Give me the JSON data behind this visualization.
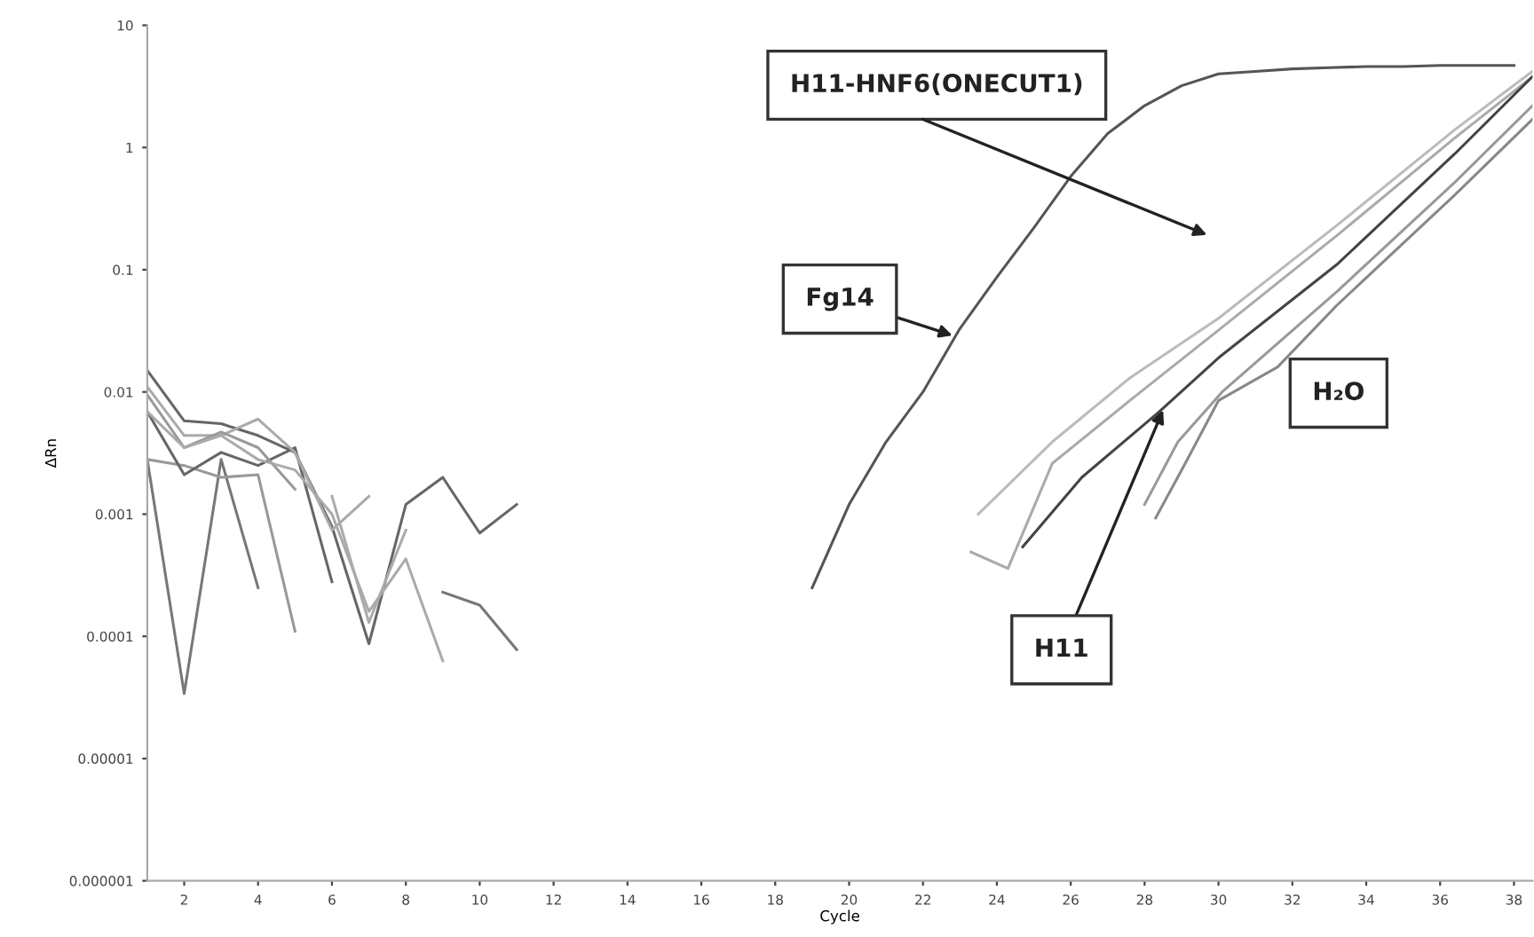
{
  "chart_data": {
    "type": "line",
    "xlabel": "Cycle",
    "ylabel": "ΔRn",
    "log": "y",
    "grid": false,
    "marker": "none",
    "line_style": "solid",
    "xlim": [
      1,
      38.5
    ],
    "xticks": [
      2,
      4,
      6,
      8,
      10,
      12,
      14,
      16,
      18,
      20,
      22,
      24,
      26,
      28,
      30,
      32,
      34,
      36,
      38
    ],
    "ylim": [
      1e-06,
      10
    ],
    "yticks": [
      {
        "value": 1e-06,
        "label": "0.000001"
      },
      {
        "value": 1e-05,
        "label": "0.00001"
      },
      {
        "value": 0.0001,
        "label": "0.0001"
      },
      {
        "value": 0.001,
        "label": "0.001"
      },
      {
        "value": 0.01,
        "label": "0.01"
      },
      {
        "value": 0.1,
        "label": "0.1"
      },
      {
        "value": 1,
        "label": "1"
      },
      {
        "value": 10,
        "label": "10"
      }
    ],
    "series": [
      {
        "color": "#777777",
        "x": [
          1,
          2,
          3,
          4
        ],
        "values": [
          0.0028,
          3.4e-05,
          0.0028,
          0.00025
        ]
      },
      {
        "color": "#999999",
        "x": [
          1,
          2,
          3,
          4,
          5
        ],
        "values": [
          0.0028,
          0.0025,
          0.002,
          0.0021,
          0.00011
        ]
      },
      {
        "color": "#666666",
        "x": [
          1,
          2,
          3,
          4,
          5,
          6
        ],
        "values": [
          0.0069,
          0.0021,
          0.0032,
          0.0025,
          0.0035,
          0.00028
        ]
      },
      {
        "color": "#666666",
        "x": [
          1,
          2,
          3,
          4,
          5,
          6,
          7,
          8,
          9,
          10,
          11
        ],
        "values": [
          0.015,
          0.0058,
          0.0055,
          0.0044,
          0.0032,
          0.00079,
          8.7e-05,
          0.0012,
          0.002,
          0.0007,
          0.0012
        ]
      },
      {
        "color": "#aaaaaa",
        "x": [
          1,
          2,
          3,
          4,
          5,
          6,
          7
        ],
        "values": [
          0.011,
          0.0044,
          0.0044,
          0.006,
          0.0032,
          0.00074,
          0.0014
        ]
      },
      {
        "color": "#999999",
        "x": [
          1,
          2,
          3,
          4,
          5
        ],
        "values": [
          0.0095,
          0.0035,
          0.0047,
          0.0035,
          0.0016
        ]
      },
      {
        "color": "#aaaaaa",
        "x": [
          1,
          2,
          3,
          4,
          5,
          6,
          7,
          8,
          9
        ],
        "values": [
          0.0069,
          0.0035,
          0.0044,
          0.0028,
          0.0023,
          0.001,
          0.00016,
          0.00043,
          6.3e-05
        ]
      },
      {
        "color": "#777777",
        "x": [
          9,
          10,
          11
        ],
        "values": [
          0.00023,
          0.00018,
          7.8e-05
        ]
      },
      {
        "color": "#aaaaaa",
        "x": [
          6,
          7,
          8
        ],
        "values": [
          0.0014,
          0.00013,
          0.00074
        ]
      },
      {
        "color": "#555555",
        "x": [
          19,
          20,
          21,
          22,
          23,
          24,
          25,
          26,
          27,
          28,
          29,
          30,
          31,
          32,
          33,
          34,
          35,
          36,
          37,
          38
        ],
        "values": [
          0.00025,
          0.0012,
          0.0039,
          0.01,
          0.033,
          0.087,
          0.22,
          0.58,
          1.3,
          2.2,
          3.2,
          4.0,
          4.2,
          4.4,
          4.5,
          4.6,
          4.6,
          4.7,
          4.7,
          4.7
        ]
      },
      {
        "color": "#aaaaaa",
        "x": [
          23.3,
          24.3,
          25.5,
          27.6,
          30.0,
          33.2,
          36.4,
          38.5
        ],
        "values": [
          0.00049,
          0.00036,
          0.0026,
          0.0085,
          0.032,
          0.19,
          1.2,
          3.8
        ]
      },
      {
        "color": "#bbbbbb",
        "x": [
          23.5,
          25.5,
          27.6,
          30.0,
          33.2,
          36.4,
          38.5
        ],
        "values": [
          0.001,
          0.0039,
          0.013,
          0.04,
          0.23,
          1.4,
          4.2
        ]
      },
      {
        "color": "#444444",
        "x": [
          24.7,
          26.3,
          28.4,
          30.0,
          33.2,
          36.4,
          38.5
        ],
        "values": [
          0.00054,
          0.002,
          0.0069,
          0.019,
          0.11,
          0.89,
          3.8
        ]
      },
      {
        "color": "#888888",
        "x": [
          28.3,
          29.1,
          30.0,
          31.6,
          33.2,
          36.4,
          38.5
        ],
        "values": [
          0.00093,
          0.0026,
          0.0085,
          0.016,
          0.051,
          0.41,
          1.7
        ]
      },
      {
        "color": "#999999",
        "x": [
          28.0,
          28.9,
          30.1,
          33.2,
          36.4,
          38.5
        ],
        "values": [
          0.0012,
          0.0039,
          0.01,
          0.066,
          0.52,
          2.2
        ]
      }
    ],
    "annotations": [
      "H11-HNF6(ONECUT1)",
      {
        "text": "Fg14",
        "x": 22.8,
        "y": 0.029
      },
      "H₂O",
      {
        "text": "H11",
        "x": 28.5,
        "y": 0.0071
      }
    ]
  }
}
